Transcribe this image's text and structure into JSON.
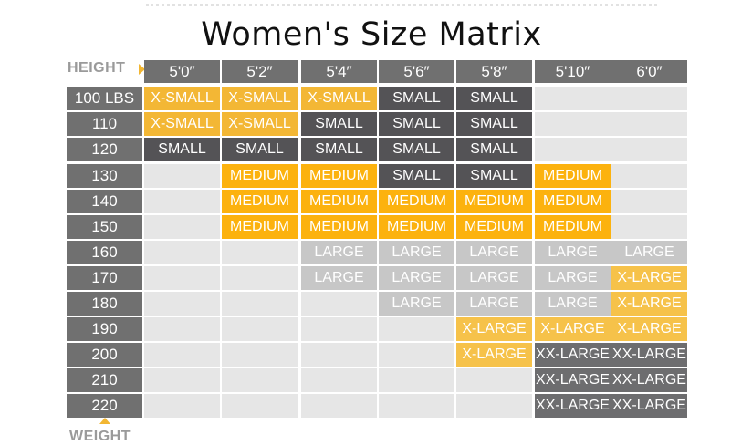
{
  "title": "Women's Size Matrix",
  "height_label": "HEIGHT",
  "weight_label": "WEIGHT",
  "colors": {
    "X-SMALL": "#f3b735",
    "SMALL": "#545356",
    "MEDIUM": "#fcb20e",
    "LARGE": "#c7c7c7",
    "X-LARGE": "#f6c24a",
    "XX-LARGE": "#6d6d6f",
    "empty": "#e6e6e6",
    "header": "#707070",
    "arrow": "#f2b632"
  },
  "chart_data": {
    "type": "table",
    "title": "Women's Size Matrix",
    "xlabel": "HEIGHT",
    "ylabel": "WEIGHT",
    "columns": [
      "5'0″",
      "5'2″",
      "5'4″",
      "5'6″",
      "5'8″",
      "5'10″",
      "6'0″"
    ],
    "rows": [
      "100 LBS",
      "110",
      "120",
      "130",
      "140",
      "150",
      "160",
      "170",
      "180",
      "190",
      "200",
      "210",
      "220"
    ],
    "cells": [
      [
        "X-SMALL",
        "X-SMALL",
        "X-SMALL",
        "SMALL",
        "SMALL",
        "",
        ""
      ],
      [
        "X-SMALL",
        "X-SMALL",
        "SMALL",
        "SMALL",
        "SMALL",
        "",
        ""
      ],
      [
        "SMALL",
        "SMALL",
        "SMALL",
        "SMALL",
        "SMALL",
        "",
        ""
      ],
      [
        "",
        "MEDIUM",
        "MEDIUM",
        "SMALL",
        "SMALL",
        "MEDIUM",
        ""
      ],
      [
        "",
        "MEDIUM",
        "MEDIUM",
        "MEDIUM",
        "MEDIUM",
        "MEDIUM",
        ""
      ],
      [
        "",
        "MEDIUM",
        "MEDIUM",
        "MEDIUM",
        "MEDIUM",
        "MEDIUM",
        ""
      ],
      [
        "",
        "",
        "LARGE",
        "LARGE",
        "LARGE",
        "LARGE",
        "LARGE"
      ],
      [
        "",
        "",
        "LARGE",
        "LARGE",
        "LARGE",
        "LARGE",
        "X-LARGE"
      ],
      [
        "",
        "",
        "",
        "LARGE",
        "LARGE",
        "LARGE",
        "X-LARGE"
      ],
      [
        "",
        "",
        "",
        "",
        "X-LARGE",
        "X-LARGE",
        "X-LARGE"
      ],
      [
        "",
        "",
        "",
        "",
        "X-LARGE",
        "XX-LARGE",
        "XX-LARGE"
      ],
      [
        "",
        "",
        "",
        "",
        "",
        "XX-LARGE",
        "XX-LARGE"
      ],
      [
        "",
        "",
        "",
        "",
        "",
        "XX-LARGE",
        "XX-LARGE"
      ]
    ]
  }
}
